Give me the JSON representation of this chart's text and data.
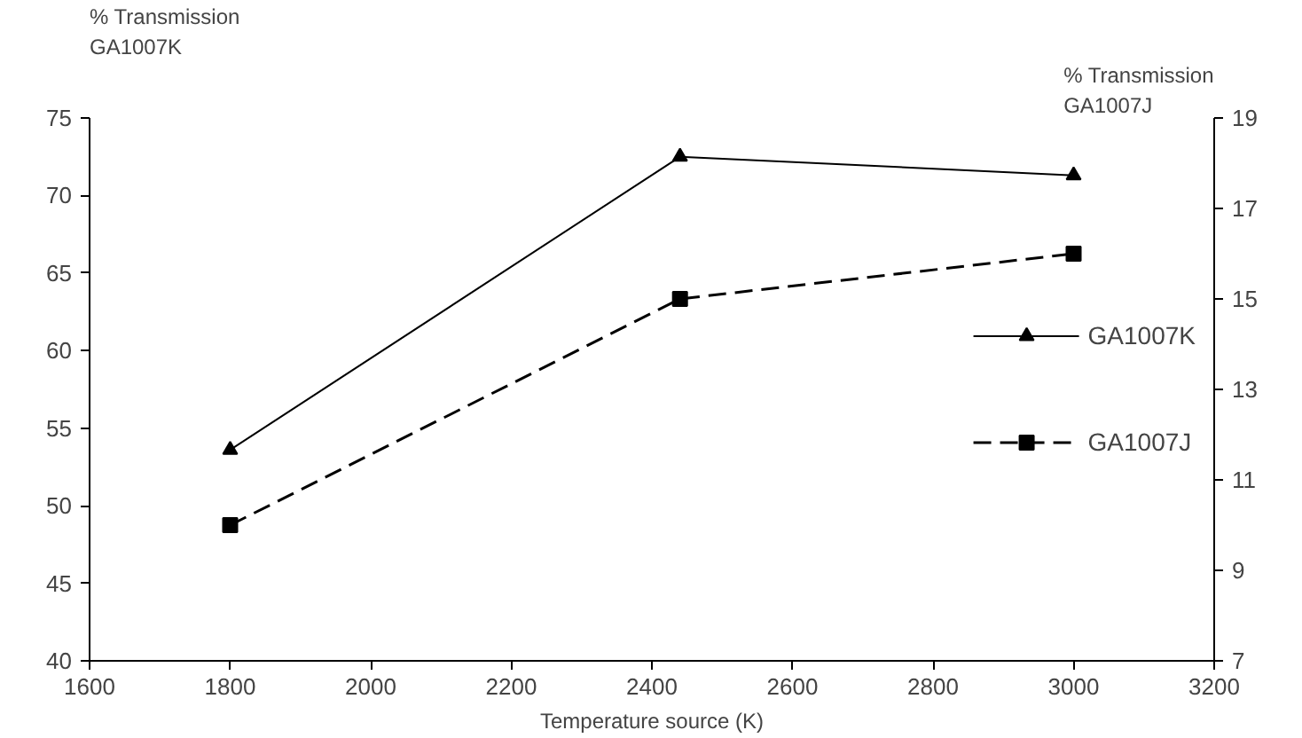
{
  "chart_data": {
    "type": "line",
    "xlabel": "Temperature source (K)",
    "ylabel": "% Transmission\nGA1007K",
    "y2label": "% Transmission\nGA1007J",
    "x": [
      1800,
      2440,
      3000
    ],
    "series": [
      {
        "name": "GA1007K",
        "color": "#000000",
        "values": [
          53.6,
          72.5,
          71.3
        ],
        "marker": "triangle",
        "line_style": "solid"
      },
      {
        "name": "GA1007J",
        "color": "#000000",
        "values": [
          10.0,
          15.0,
          16.0
        ],
        "axis": "y2",
        "marker": "square",
        "line_style": "dashed"
      }
    ],
    "xlim": [
      1600,
      3200
    ],
    "xticks": [
      1600,
      1800,
      2000,
      2200,
      2400,
      2600,
      2800,
      3000,
      3200
    ],
    "ylim": [
      40,
      75
    ],
    "yticks": [
      40,
      45,
      50,
      55,
      60,
      65,
      70,
      75
    ],
    "y2lim": [
      7,
      19
    ],
    "y2ticks": [
      7,
      9,
      11,
      13,
      15,
      17,
      19
    ],
    "grid": false,
    "legend": "right"
  }
}
